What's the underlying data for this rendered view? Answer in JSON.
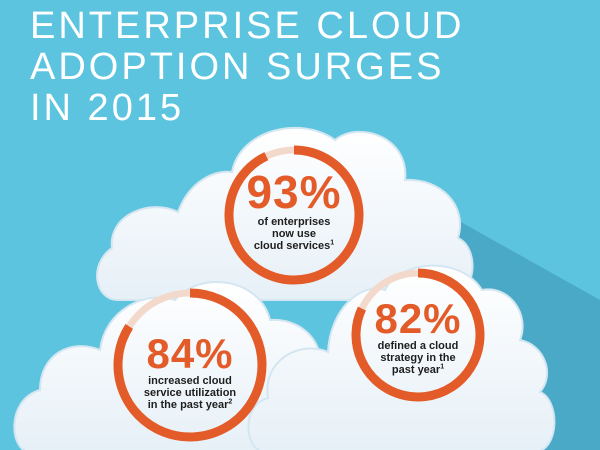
{
  "title_lines": [
    "ENTERPRISE CLOUD",
    "ADOPTION SURGES",
    "IN 2015"
  ],
  "colors": {
    "background": "#5cc4de",
    "shadow": "#4aa9c6",
    "cloud": "#f5f9fc",
    "cloud_edge": "#d4e6f1",
    "ring": "#e35b28",
    "ring_track": "#f3d9cc",
    "text": "#1e1e1e"
  },
  "stats": [
    {
      "id": "enterprises",
      "percent": "93%",
      "value": 93,
      "lines": [
        "of enterprises",
        "now use",
        "cloud services"
      ],
      "footnote": "1"
    },
    {
      "id": "utilization",
      "percent": "84%",
      "value": 84,
      "lines": [
        "increased cloud",
        "service utilization",
        "in the past year"
      ],
      "footnote": "2"
    },
    {
      "id": "strategy",
      "percent": "82%",
      "value": 82,
      "lines": [
        "defined a cloud",
        "strategy in the",
        "past year"
      ],
      "footnote": "1"
    }
  ]
}
